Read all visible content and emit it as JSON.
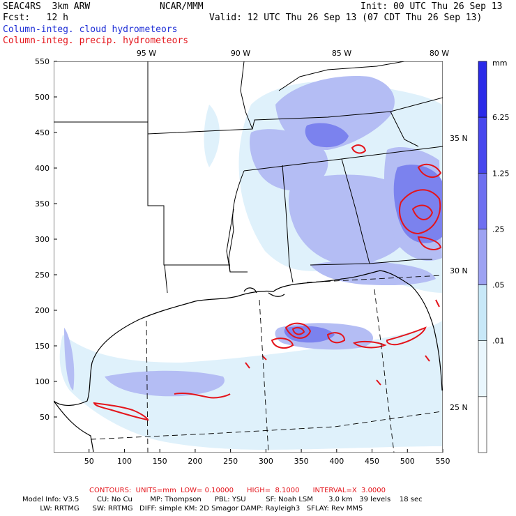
{
  "header": {
    "model": "SEAC4RS  3km ARW",
    "center": "NCAR/MMM",
    "init": "Init: 00 UTC Thu 26 Sep 13",
    "fcst": "Fcst:   12 h",
    "valid": "Valid: 12 UTC Thu 26 Sep 13 (07 CDT Thu 26 Sep 13)",
    "legend_cloud": "Column-integ. cloud hydrometeors",
    "legend_precip": "Column-integ. precip. hydrometeors"
  },
  "colors": {
    "cloud_text": "#1f2fd6",
    "precip_text": "#e4141b",
    "precip_contour": "#e4141b"
  },
  "axes": {
    "x_ticks": [
      "50",
      "100",
      "150",
      "200",
      "250",
      "300",
      "350",
      "400",
      "450",
      "500",
      "550"
    ],
    "y_ticks": [
      "50",
      "100",
      "150",
      "200",
      "250",
      "300",
      "350",
      "400",
      "450",
      "500",
      "550"
    ],
    "lon_labels": [
      "95 W",
      "90 W",
      "85 W",
      "80 W"
    ],
    "lat_labels": [
      "35 N",
      "30 N",
      "25 N"
    ]
  },
  "colorbar": {
    "unit": "mm",
    "labels": [
      "6.25",
      "1.25",
      ".25",
      ".05",
      ".01"
    ],
    "bands": [
      {
        "color": "#2a2ae8"
      },
      {
        "color": "#4747ee"
      },
      {
        "color": "#6e6ff0"
      },
      {
        "color": "#9da2f2"
      },
      {
        "color": "#c8e8f8"
      },
      {
        "color": "#e9f6fd"
      },
      {
        "color": "#ffffff"
      }
    ]
  },
  "footer": {
    "contours": "CONTOURS:  UNITS=mm  LOW= 0.10000      HIGH=  8.1000      INTERVAL=X  3.0000",
    "line1": "Model Info: V3.5        CU: No Cu        MP: Thompson      PBL: YSU         SF: Noah LSM       3.0 km   39 levels    18 sec",
    "line2": "        LW: RRTMG      SW: RRTMG   DIFF: simple KM: 2D Smagor DAMP: Rayleigh3   SFLAY: Rev MM5"
  }
}
